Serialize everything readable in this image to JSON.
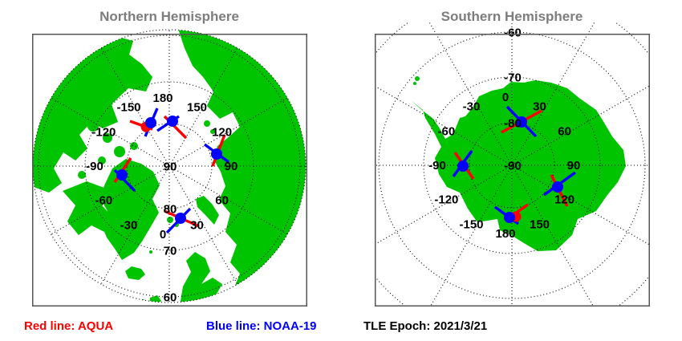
{
  "legend": {
    "red_label": "Red line: AQUA",
    "blue_label": "Blue line: NOAA-19",
    "epoch_label": "TLE Epoch: 2021/3/21"
  },
  "colors": {
    "land": "#00c400",
    "ocean": "#ffffff",
    "aqua_track": "#ff0000",
    "noaa_track": "#0000ff",
    "grid": "#000000",
    "label_text": "#000000",
    "title_text": "#7d7d7d",
    "panel_border": "#555555"
  },
  "chart_data": [
    {
      "type": "map",
      "id": "north",
      "title": "Northern Hemisphere",
      "projection": "polar stereographic, North Pole at center",
      "hemisphere": "north",
      "pole": [
        171,
        165
      ],
      "grid": {
        "lat_circles": [
          {
            "label": "90",
            "r": 0
          },
          {
            "label": "80",
            "r": 53
          },
          {
            "label": "70",
            "r": 105
          },
          {
            "label": "60",
            "r": 163
          },
          {
            "label": "",
            "r": 170
          }
        ],
        "spoke_r": 170,
        "lon_label_r": 85,
        "lon_labels": [
          0,
          30,
          60,
          90,
          120,
          150,
          180,
          -150,
          -120,
          -90,
          -60,
          -30
        ],
        "clip_r": 170
      },
      "satellites": [
        {
          "dot": [
            148,
            111
          ],
          "red_dot": [
            142,
            116
          ],
          "red": [
            [
              122,
              109
            ],
            [
              150,
              119
            ]
          ],
          "blue": [
            [
              156,
              93
            ],
            [
              141,
              128
            ]
          ]
        },
        {
          "dot": [
            175,
            109
          ],
          "red": [
            [
              165,
              103
            ],
            [
              192,
              130
            ]
          ],
          "blue": [
            [
              183,
              103
            ],
            [
              156,
              121
            ]
          ]
        },
        {
          "dot": [
            230,
            150
          ],
          "red": [
            [
              240,
              126
            ],
            [
              225,
              165
            ]
          ],
          "blue": [
            [
              215,
              138
            ],
            [
              245,
              160
            ]
          ]
        },
        {
          "dot": [
            112,
            176
          ],
          "red": [
            [
              123,
              155
            ],
            [
              103,
              185
            ]
          ],
          "blue": [
            [
              103,
              170
            ],
            [
              128,
              196
            ]
          ]
        },
        {
          "dot": [
            185,
            230
          ],
          "red": [
            [
              165,
              221
            ],
            [
              208,
              240
            ]
          ],
          "blue": [
            [
              197,
              218
            ],
            [
              168,
              248
            ]
          ]
        }
      ]
    },
    {
      "type": "map",
      "id": "south",
      "title": "Southern Hemisphere",
      "projection": "polar stereographic, South Pole at center",
      "hemisphere": "south",
      "pole": [
        171,
        164
      ],
      "grid": {
        "lat_circles": [
          {
            "label": "-90",
            "r": 0
          },
          {
            "label": "-80",
            "r": 53
          },
          {
            "label": "-70",
            "r": 110
          },
          {
            "label": "-60",
            "r": 166
          },
          {
            "label": "",
            "r": 220
          }
        ],
        "spoke_r": 220,
        "lon_label_r": 85,
        "lon_labels": [
          0,
          30,
          60,
          90,
          120,
          150,
          180,
          -150,
          -120,
          -90,
          -60,
          -30
        ],
        "clip_r": null
      },
      "satellites": [
        {
          "dot": [
            183,
            110
          ],
          "red": [
            [
              158,
              123
            ],
            [
              208,
              96
            ]
          ],
          "blue": [
            [
              165,
              91
            ],
            [
              201,
              128
            ]
          ]
        },
        {
          "dot": [
            110,
            165
          ],
          "red": [
            [
              100,
              148
            ],
            [
              123,
              181
            ]
          ],
          "blue": [
            [
              121,
              146
            ],
            [
              98,
              178
            ]
          ]
        },
        {
          "dot": [
            228,
            191
          ],
          "red": [
            [
              220,
              176
            ],
            [
              240,
              215
            ]
          ],
          "blue": [
            [
              250,
              173
            ],
            [
              211,
              201
            ]
          ]
        },
        {
          "dot": [
            168,
            229
          ],
          "red_dot": [
            176,
            228
          ],
          "red": [
            [
              168,
              229
            ],
            [
              191,
              213
            ]
          ],
          "blue": [
            [
              150,
              216
            ],
            [
              179,
              237
            ]
          ]
        }
      ]
    }
  ]
}
